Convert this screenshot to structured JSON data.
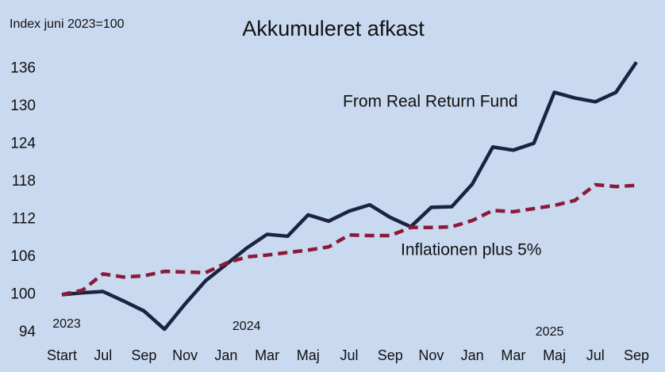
{
  "chart_data": {
    "type": "line",
    "title": "Akkumuleret afkast",
    "ylabel": "Index juni 2023=100",
    "categories": [
      "Start",
      null,
      "Jul",
      null,
      "Sep",
      null,
      "Nov",
      null,
      "Jan",
      null,
      "Mar",
      null,
      "Maj",
      null,
      "Jul",
      null,
      "Sep",
      null,
      "Nov",
      null,
      "Jan",
      null,
      "Mar",
      null,
      "Maj",
      null,
      "Jul",
      null,
      "Sep"
    ],
    "years": [
      "2023",
      "2024",
      "2025"
    ],
    "series": [
      {
        "name": "From Real Return Fund",
        "color": "#1c2340",
        "dashed": false,
        "values": [
          100,
          100.3,
          100.5,
          99.0,
          97.4,
          94.5,
          98.5,
          102.2,
          104.8,
          107.4,
          109.6,
          109.3,
          112.7,
          111.7,
          113.3,
          114.3,
          112.3,
          110.8,
          113.9,
          114.0,
          117.6,
          123.5,
          123.0,
          124.1,
          132.2,
          131.3,
          130.7,
          132.2,
          137.0
        ]
      },
      {
        "name": "Inflationen plus 5%",
        "color": "#8b1a3a",
        "dashed": true,
        "values": [
          100,
          100.7,
          103.3,
          102.8,
          103.0,
          103.7,
          103.6,
          103.5,
          105.0,
          106.0,
          106.3,
          106.7,
          107.1,
          107.6,
          109.5,
          109.4,
          109.4,
          110.7,
          110.7,
          110.8,
          111.8,
          113.4,
          113.2,
          113.7,
          114.2,
          115.0,
          117.5,
          117.2,
          117.4
        ]
      }
    ],
    "ylim": [
      94,
      138
    ],
    "yticks": [
      94,
      100,
      106,
      112,
      118,
      124,
      130,
      136
    ],
    "grid": false
  }
}
